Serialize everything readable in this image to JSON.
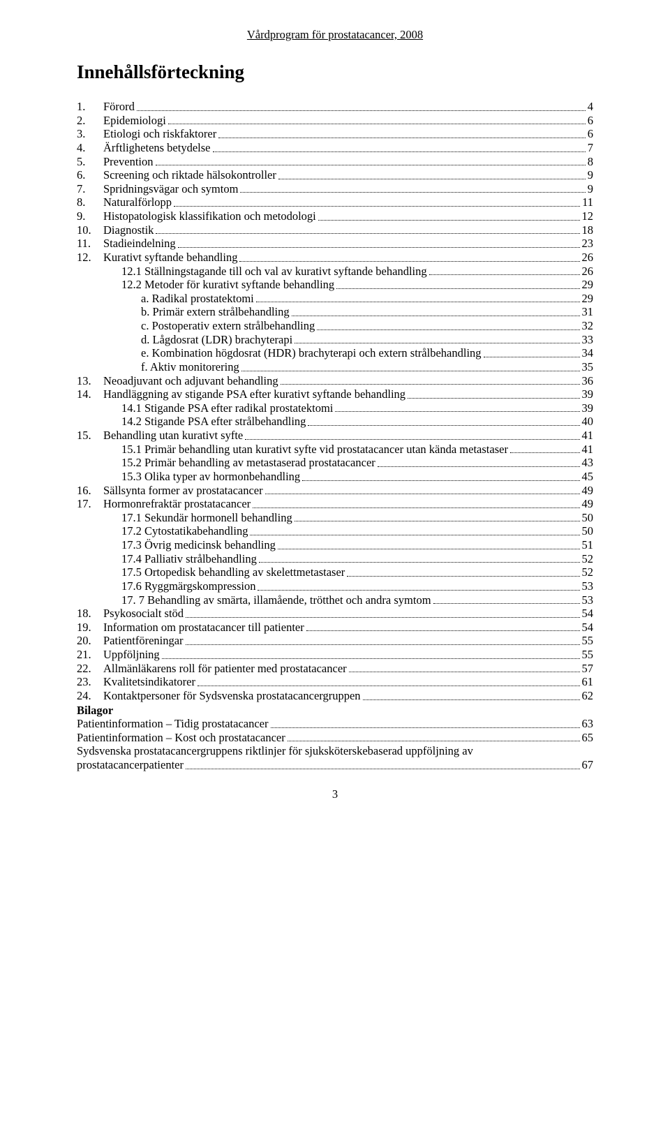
{
  "header": "Vårdprogram för prostatacancer, 2008",
  "title": "Innehållsförteckning",
  "footer_page": "3",
  "bilagor_label": "Bilagor",
  "entries": [
    {
      "num": "1.",
      "text": "Förord",
      "page": "4",
      "level": 0
    },
    {
      "num": "2.",
      "text": "Epidemiologi",
      "page": "6",
      "level": 0
    },
    {
      "num": "3.",
      "text": "Etiologi och riskfaktorer",
      "page": "6",
      "level": 0
    },
    {
      "num": "4.",
      "text": "Ärftlighetens betydelse",
      "page": "7",
      "level": 0
    },
    {
      "num": "5.",
      "text": "Prevention",
      "page": "8",
      "level": 0
    },
    {
      "num": "6.",
      "text": "Screening och riktade hälsokontroller",
      "page": "9",
      "level": 0
    },
    {
      "num": "7.",
      "text": "Spridningsvägar och symtom",
      "page": "9",
      "level": 0
    },
    {
      "num": "8.",
      "text": "Naturalförlopp",
      "page": "11",
      "level": 0
    },
    {
      "num": "9.",
      "text": "Histopatologisk klassifikation och metodologi",
      "page": "12",
      "level": 0
    },
    {
      "num": "10.",
      "text": "Diagnostik",
      "page": "18",
      "level": 0
    },
    {
      "num": "11.",
      "text": "Stadieindelning",
      "page": "23",
      "level": 0
    },
    {
      "num": "12.",
      "text": "Kurativt syftande behandling",
      "page": "26",
      "level": 0
    },
    {
      "num": "",
      "text": "12.1 Ställningstagande till och val av kurativt syftande behandling",
      "page": "26",
      "level": 1
    },
    {
      "num": "",
      "text": "12.2 Metoder för kurativt syftande behandling",
      "page": "29",
      "level": 1
    },
    {
      "num": "",
      "text": "a. Radikal prostatektomi",
      "page": "29",
      "level": 2
    },
    {
      "num": "",
      "text": "b. Primär extern strålbehandling",
      "page": "31",
      "level": 2
    },
    {
      "num": "",
      "text": "c. Postoperativ extern strålbehandling",
      "page": "32",
      "level": 2
    },
    {
      "num": "",
      "text": "d. Lågdosrat (LDR) brachyterapi",
      "page": "33",
      "level": 2
    },
    {
      "num": "",
      "text": "e. Kombination högdosrat (HDR) brachyterapi och extern strålbehandling",
      "page": "34",
      "level": 2
    },
    {
      "num": "",
      "text": "f. Aktiv monitorering",
      "page": "35",
      "level": 2
    },
    {
      "num": "13.",
      "text": "Neoadjuvant och adjuvant behandling",
      "page": "36",
      "level": 0
    },
    {
      "num": "14.",
      "text": "Handläggning av stigande PSA efter kurativt syftande behandling",
      "page": "39",
      "level": 0
    },
    {
      "num": "",
      "text": "14.1 Stigande PSA efter radikal prostatektomi",
      "page": "39",
      "level": 1
    },
    {
      "num": "",
      "text": "14.2 Stigande PSA efter strålbehandling",
      "page": "40",
      "level": 1
    },
    {
      "num": "15.",
      "text": "Behandling utan kurativt syfte",
      "page": "41",
      "level": 0
    },
    {
      "num": "",
      "text": "15.1 Primär behandling utan kurativt syfte vid prostatacancer utan kända metastaser",
      "page": "41",
      "level": 1
    },
    {
      "num": "",
      "text": "15.2 Primär behandling av metastaserad prostatacancer",
      "page": "43",
      "level": 1
    },
    {
      "num": "",
      "text": "15.3 Olika typer av hormonbehandling",
      "page": "45",
      "level": 1
    },
    {
      "num": "16.",
      "text": "Sällsynta former av prostatacancer",
      "page": "49",
      "level": 0
    },
    {
      "num": "17.",
      "text": "Hormonrefraktär prostatacancer",
      "page": "49",
      "level": 0
    },
    {
      "num": "",
      "text": "17.1 Sekundär hormonell behandling",
      "page": "50",
      "level": 1
    },
    {
      "num": "",
      "text": "17.2 Cytostatikabehandling",
      "page": "50",
      "level": 1
    },
    {
      "num": "",
      "text": "17.3 Övrig medicinsk behandling",
      "page": "51",
      "level": 1
    },
    {
      "num": "",
      "text": "17.4 Palliativ strålbehandling",
      "page": "52",
      "level": 1
    },
    {
      "num": "",
      "text": "17.5 Ortopedisk behandling av skelettmetastaser",
      "page": "52",
      "level": 1
    },
    {
      "num": "",
      "text": "17.6 Ryggmärgskompression",
      "page": "53",
      "level": 1
    },
    {
      "num": "",
      "text": "17. 7 Behandling av smärta, illamående, trötthet och andra symtom",
      "page": "53",
      "level": 1
    },
    {
      "num": "18.",
      "text": "Psykosocialt stöd",
      "page": "54",
      "level": 0
    },
    {
      "num": "19.",
      "text": "Information om prostatacancer till patienter",
      "page": "54",
      "level": 0
    },
    {
      "num": "20.",
      "text": "Patientföreningar",
      "page": "55",
      "level": 0
    },
    {
      "num": "21.",
      "text": "Uppföljning",
      "page": "55",
      "level": 0
    },
    {
      "num": "22.",
      "text": "Allmänläkarens roll för patienter med prostatacancer",
      "page": "57",
      "level": 0
    },
    {
      "num": "23.",
      "text": "Kvalitetsindikatorer",
      "page": "61",
      "level": 0
    },
    {
      "num": "24.",
      "text": "Kontaktpersoner för Sydsvenska prostatacancergruppen",
      "page": "62",
      "level": 0
    }
  ],
  "appendices": [
    {
      "text": "Patientinformation – Tidig prostatacancer",
      "page": "63"
    },
    {
      "text": "Patientinformation – Kost och prostatacancer",
      "page": "65"
    },
    {
      "text": "Sydsvenska prostatacancergruppens riktlinjer för sjuksköterskebaserad uppföljning av",
      "page": ""
    },
    {
      "text": "prostatacancerpatienter",
      "page": "67"
    }
  ]
}
